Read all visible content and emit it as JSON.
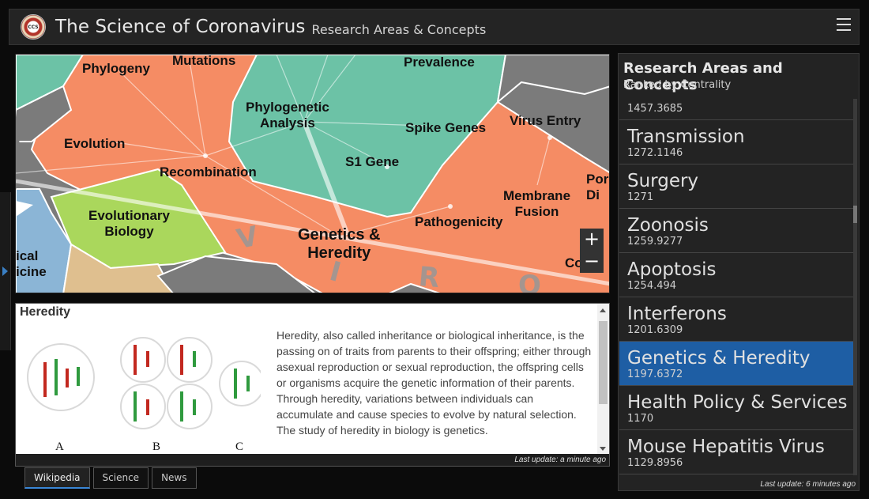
{
  "header": {
    "logo_text": "CCS",
    "title": "The Science of Coronavirus",
    "subtitle": "Research Areas & Concepts"
  },
  "map": {
    "labels": {
      "phylogeny": "Phylogeny",
      "mutations": "Mutations",
      "prevalence": "Prevalence",
      "phylogenetic_analysis": "Phylogenetic\nAnalysis",
      "spike_genes": "Spike Genes",
      "virus_entry": "Virus Entry",
      "evolution": "Evolution",
      "s1_gene": "S1 Gene",
      "recombination": "Recombination",
      "membrane_fusion": "Membrane\nFusion",
      "por_partial": "Por\nDi",
      "evolutionary_biology": "Evolutionary\nBiology",
      "pathogenicity": "Pathogenicity",
      "genetics_heredity": "Genetics &\nHeredity",
      "medicine_partial": "ical\nicine",
      "corona_partial": "Co"
    },
    "big_letters": {
      "v": "V",
      "i": "I",
      "r": "R",
      "o": "O"
    },
    "zoom_in": "+",
    "zoom_out": "−"
  },
  "info": {
    "title": "Heredity",
    "text": "Heredity, also called inheritance or biological inheritance, is the passing on of traits from parents to their offspring; either through asexual reproduction or sexual reproduction, the offspring cells or organisms acquire the genetic information of their parents. Through heredity, variations between individuals can accumulate and cause species to evolve by natural selection. The study of heredity in biology is genetics.",
    "diagram_labels": [
      "A",
      "B",
      "C"
    ],
    "last_update": "Last update: a minute ago"
  },
  "tabs": [
    {
      "label": "Wikipedia",
      "active": true
    },
    {
      "label": "Science",
      "active": false
    },
    {
      "label": "News",
      "active": false
    }
  ],
  "right_panel": {
    "title": "Research Areas and Concepts",
    "subtitle": "Ranked by Centrality",
    "items": [
      {
        "name": "",
        "value": "1457.3685"
      },
      {
        "name": "Transmission",
        "value": "1272.1146"
      },
      {
        "name": "Surgery",
        "value": "1271"
      },
      {
        "name": "Zoonosis",
        "value": "1259.9277"
      },
      {
        "name": "Apoptosis",
        "value": "1254.494"
      },
      {
        "name": "Interferons",
        "value": "1201.6309"
      },
      {
        "name": "Genetics & Heredity",
        "value": "1197.6372",
        "selected": true
      },
      {
        "name": "Health Policy & Services",
        "value": "1170"
      },
      {
        "name": "Mouse Hepatitis Virus",
        "value": "1129.8956"
      }
    ],
    "last_update": "Last update: 6 minutes ago"
  },
  "colors": {
    "orange_region": "#f58c64",
    "teal_region": "#6cc2a6",
    "green_region": "#aad75c",
    "blue_region": "#8bb5d6",
    "tan_region": "#dfbf8f",
    "gray_region": "#7b7b7b",
    "selected_item": "#1e5ea4",
    "chromosome_red": "#c2281f",
    "chromosome_green": "#2f9a3e"
  }
}
